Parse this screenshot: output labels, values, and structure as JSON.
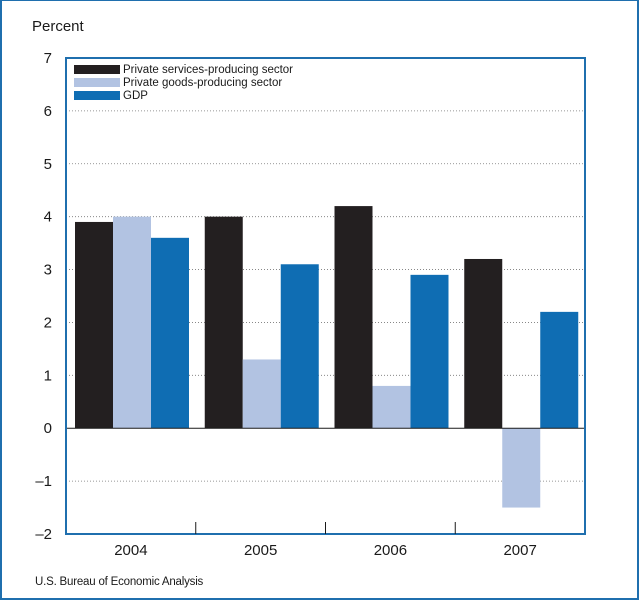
{
  "chart_data": {
    "type": "bar",
    "ylabel": "Percent",
    "categories": [
      "2004",
      "2005",
      "2006",
      "2007"
    ],
    "ylim": [
      -2,
      7
    ],
    "yticks": [
      "7",
      "6",
      "5",
      "4",
      "3",
      "2",
      "1",
      "0",
      "–1",
      "–2"
    ],
    "grid": true,
    "legend_position": "top-left",
    "series": [
      {
        "name": "Private services-producing sector",
        "color": "#231f20",
        "values": [
          3.9,
          4.0,
          4.2,
          3.2
        ]
      },
      {
        "name": "Private goods-producing sector",
        "color": "#b2c3e2",
        "values": [
          4.0,
          1.3,
          0.8,
          -1.5
        ]
      },
      {
        "name": "GDP",
        "color": "#0f6db3",
        "values": [
          3.6,
          3.1,
          2.9,
          2.2
        ]
      }
    ],
    "source": "U.S. Bureau of Economic Analysis"
  }
}
